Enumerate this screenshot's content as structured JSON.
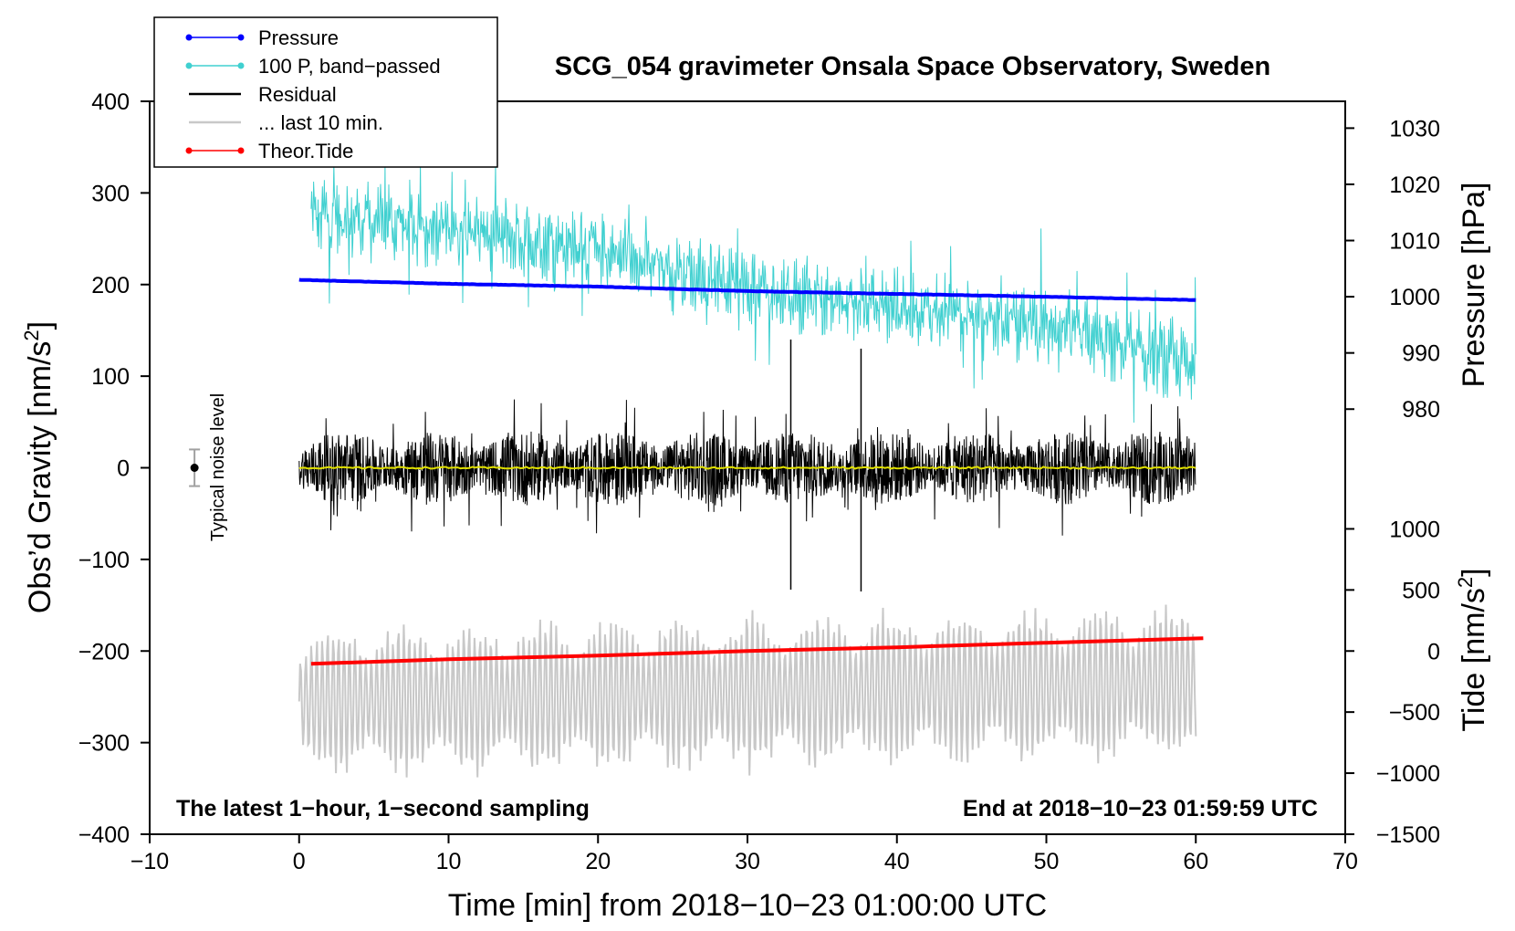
{
  "chart_data": {
    "type": "line",
    "title": "SCG_054 gravimeter Onsala Space Observatory, Sweden",
    "xlabel": "Time [min] from 2018−10−23 01:00:00 UTC",
    "ylabel": "Obs’d Gravity [nm/s²]",
    "ylabel_parts": {
      "pre": "Obs’d Gravity [nm/s",
      "sup": "2",
      "post": "]"
    },
    "xlim": [
      -10,
      70
    ],
    "ylim": [
      -400,
      400
    ],
    "x_ticks": [
      -10,
      0,
      10,
      20,
      30,
      40,
      50,
      60,
      70
    ],
    "y_ticks": [
      -400,
      -300,
      -200,
      -100,
      0,
      100,
      200,
      300,
      400
    ],
    "x_tick_labels": [
      "−10",
      "0",
      "10",
      "20",
      "30",
      "40",
      "50",
      "60",
      "70"
    ],
    "y_tick_labels": [
      "−400",
      "−300",
      "−200",
      "−100",
      "0",
      "100",
      "200",
      "300",
      "400"
    ],
    "pressure_axis": {
      "label": "Pressure [hPa]",
      "ticks": [
        980,
        990,
        1000,
        1010,
        1020,
        1030
      ],
      "tick_labels": [
        "980",
        "990",
        "1000",
        "1010",
        "1020",
        "1030"
      ],
      "left_gravity_equiv": {
        "value": 1000,
        "gravity": 186.7,
        "slope_per_hpa": 6.134
      }
    },
    "tide_axis": {
      "label_parts": {
        "pre": "Tide [nm/s",
        "sup": "2",
        "post": "]"
      },
      "ticks": [
        -1500,
        -1000,
        -500,
        0,
        500,
        1000
      ],
      "tick_labels": [
        "−1500",
        "−1000",
        "−500",
        "0",
        "500",
        "1000"
      ],
      "left_gravity_equiv": {
        "value": 0,
        "gravity": -200,
        "slope_per_unit": 0.1333
      }
    },
    "series": [
      {
        "name": "Pressure",
        "unit": "hPa",
        "color": "#0000ff",
        "x": [
          0,
          10,
          20,
          30,
          40,
          50,
          60
        ],
        "values": [
          1003.0,
          1002.3,
          1001.8,
          1001.0,
          1000.5,
          1000.0,
          999.4
        ]
      },
      {
        "name": "100 P, band−passed",
        "unit": "nm/s²",
        "color": "#40d0d0",
        "x": [
          0.8,
          10,
          20,
          30,
          40,
          50,
          60
        ],
        "trend": [
          275,
          262,
          238,
          195,
          175,
          155,
          110
        ],
        "amplitude": 35
      },
      {
        "name": "Residual",
        "unit": "nm/s²",
        "color": "#000000",
        "x": [
          0,
          60
        ],
        "trend": [
          0,
          0
        ],
        "amplitude": 40,
        "spikes": [
          {
            "x": 32.9,
            "low": -133,
            "high": 140
          },
          {
            "x": 37.6,
            "low": -135,
            "high": 130
          }
        ]
      },
      {
        "name": "... last 10 min.",
        "unit": "nm/s²",
        "color": "#c8c8c8",
        "x": [
          0,
          60
        ],
        "trend": [
          -255,
          -235
        ],
        "amplitude": 60
      },
      {
        "name": "Theor.Tide",
        "unit": "nm/s²",
        "color": "#ff0000",
        "x": [
          0.8,
          10,
          20,
          30,
          40,
          50,
          60.5
        ],
        "values": [
          -214,
          -209,
          -205,
          -200,
          -196,
          -191,
          -186
        ]
      },
      {
        "name": "Residual (smoothed)",
        "unit": "nm/s²",
        "color": "#e0e000",
        "x": [
          0,
          60
        ],
        "values": [
          0,
          0
        ]
      }
    ],
    "noise_level": {
      "x": -7,
      "y": 0,
      "error": 20,
      "label": "Typical noise level"
    },
    "annotations": {
      "left": "The latest 1−hour, 1−second sampling",
      "right": "End at 2018−10−23 01:59:59 UTC"
    },
    "legend": {
      "placement": "top-left",
      "entries": [
        {
          "label": "Pressure",
          "color": "#0000ff",
          "marker": "dot"
        },
        {
          "label": "100 P, band−passed",
          "color": "#40d0d0",
          "marker": "dot"
        },
        {
          "label": "Residual",
          "color": "#000000",
          "marker": "line"
        },
        {
          "label": "... last 10 min.",
          "color": "#c8c8c8",
          "marker": "line"
        },
        {
          "label": "Theor.Tide",
          "color": "#ff0000",
          "marker": "dot"
        }
      ]
    }
  }
}
